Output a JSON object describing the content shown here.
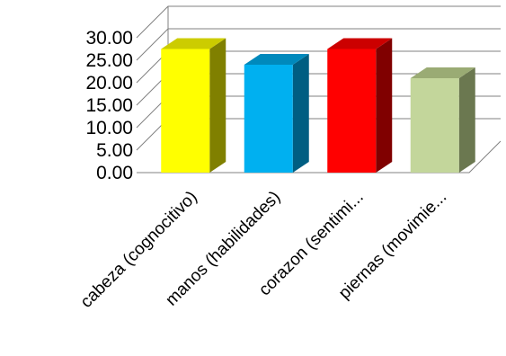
{
  "chart_data": {
    "type": "bar",
    "style": "3d-column",
    "title": "",
    "xlabel": "",
    "ylabel": "",
    "ylim": [
      0,
      30
    ],
    "ytick_step": 5,
    "ytick_labels": [
      "0.00",
      "5.00",
      "10.00",
      "15.00",
      "20.00",
      "25.00",
      "30.00"
    ],
    "grid": true,
    "legend": "none",
    "categories": [
      "cabeza (cognocitivo)",
      "manos (habilidades)",
      "corazon (sentimi...",
      "piernas (movimie..."
    ],
    "values": [
      27.5,
      24.0,
      27.5,
      21.0
    ],
    "colors": [
      {
        "front": "#FFFF00",
        "top": "#CCCC00",
        "side": "#808000"
      },
      {
        "front": "#00B0F0",
        "top": "#0089BC",
        "side": "#005E82"
      },
      {
        "front": "#FF0000",
        "top": "#CC0000",
        "side": "#800000"
      },
      {
        "front": "#C3D69B",
        "top": "#9AAB74",
        "side": "#6B7850"
      }
    ]
  }
}
